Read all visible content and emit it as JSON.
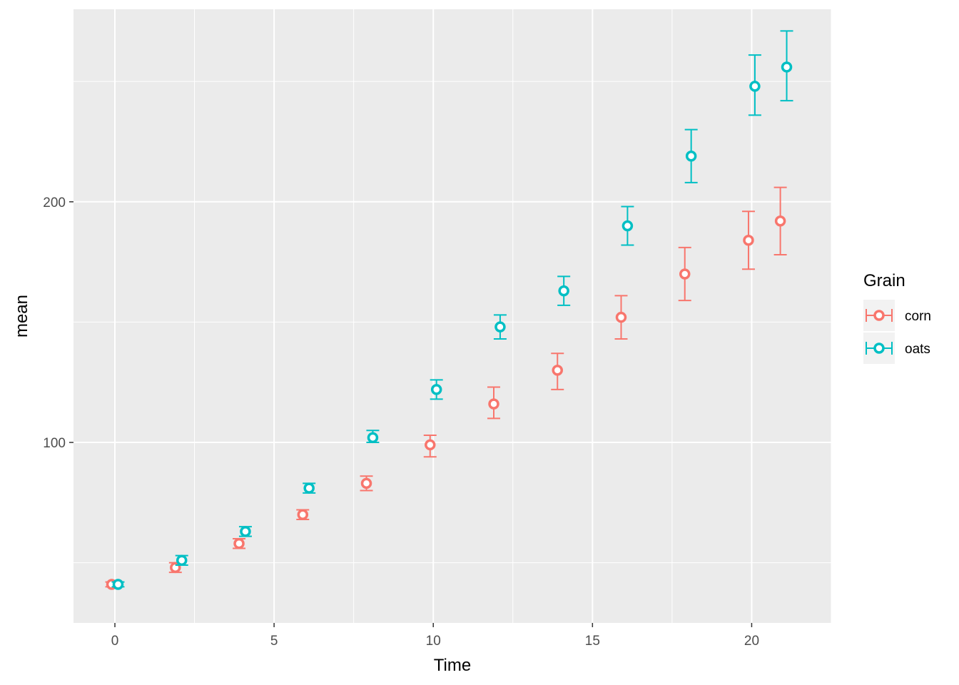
{
  "chart_data": {
    "type": "scatter",
    "title": "",
    "xlabel": "Time",
    "ylabel": "mean",
    "xlim": [
      -1.3,
      22.5
    ],
    "ylim": [
      25,
      280
    ],
    "x_ticks": [
      0,
      5,
      10,
      15,
      20
    ],
    "x_tick_labels": [
      "0",
      "5",
      "10",
      "15",
      "20"
    ],
    "y_ticks": [
      100,
      200
    ],
    "y_tick_labels": [
      "100",
      "200"
    ],
    "grid": true,
    "legend": {
      "title": "Grain",
      "placement": "right"
    },
    "series": [
      {
        "name": "corn",
        "color": "#F8766D",
        "points": [
          {
            "x": 0,
            "y": 41,
            "lo": 40,
            "hi": 42
          },
          {
            "x": 2,
            "y": 48,
            "lo": 46,
            "hi": 50
          },
          {
            "x": 4,
            "y": 58,
            "lo": 56,
            "hi": 60
          },
          {
            "x": 6,
            "y": 70,
            "lo": 68,
            "hi": 72
          },
          {
            "x": 8,
            "y": 83,
            "lo": 80,
            "hi": 86
          },
          {
            "x": 10,
            "y": 99,
            "lo": 94,
            "hi": 103
          },
          {
            "x": 12,
            "y": 116,
            "lo": 110,
            "hi": 123
          },
          {
            "x": 14,
            "y": 130,
            "lo": 122,
            "hi": 137
          },
          {
            "x": 16,
            "y": 152,
            "lo": 143,
            "hi": 161
          },
          {
            "x": 18,
            "y": 170,
            "lo": 159,
            "hi": 181
          },
          {
            "x": 20,
            "y": 184,
            "lo": 172,
            "hi": 196
          },
          {
            "x": 21,
            "y": 192,
            "lo": 178,
            "hi": 206
          }
        ]
      },
      {
        "name": "oats",
        "color": "#00BFC4",
        "points": [
          {
            "x": 0,
            "y": 41,
            "lo": 40,
            "hi": 42
          },
          {
            "x": 2,
            "y": 51,
            "lo": 49,
            "hi": 53
          },
          {
            "x": 4,
            "y": 63,
            "lo": 61,
            "hi": 65
          },
          {
            "x": 6,
            "y": 81,
            "lo": 79,
            "hi": 83
          },
          {
            "x": 8,
            "y": 102,
            "lo": 100,
            "hi": 105
          },
          {
            "x": 10,
            "y": 122,
            "lo": 118,
            "hi": 126
          },
          {
            "x": 12,
            "y": 148,
            "lo": 143,
            "hi": 153
          },
          {
            "x": 14,
            "y": 163,
            "lo": 157,
            "hi": 169
          },
          {
            "x": 16,
            "y": 190,
            "lo": 182,
            "hi": 198
          },
          {
            "x": 18,
            "y": 219,
            "lo": 208,
            "hi": 230
          },
          {
            "x": 20,
            "y": 248,
            "lo": 236,
            "hi": 261
          },
          {
            "x": 21,
            "y": 256,
            "lo": 242,
            "hi": 271
          }
        ]
      }
    ]
  }
}
